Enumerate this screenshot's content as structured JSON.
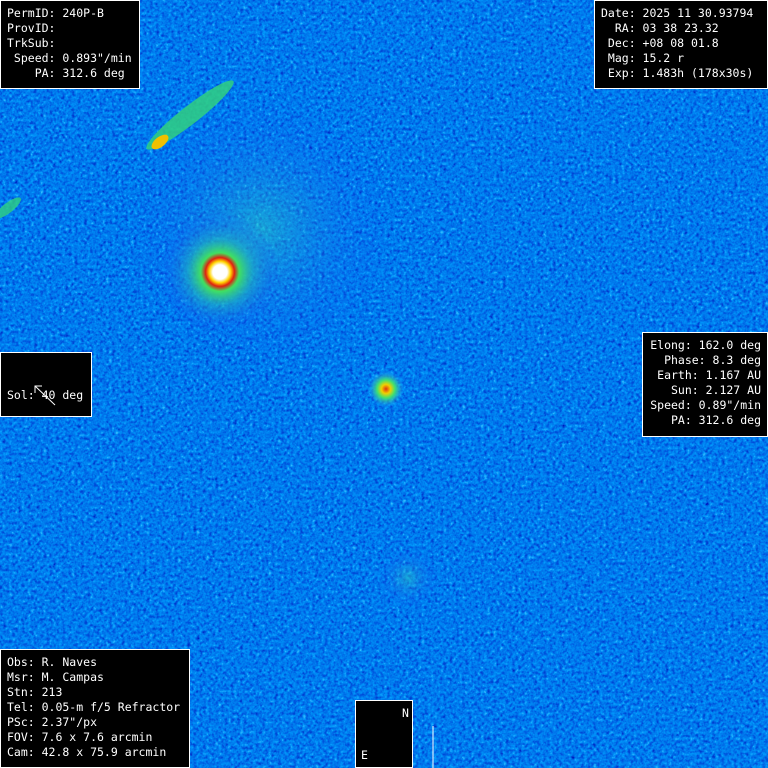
{
  "object": {
    "lines": [
      "PermID: 240P-B",
      "ProvID:",
      "TrkSub:",
      " Speed: 0.893\"/min",
      "    PA: 312.6 deg"
    ]
  },
  "ephemeris": {
    "lines": [
      "Date: 2025 11 30.93794",
      "  RA: 03 38 23.32",
      " Dec: +08 08 01.8",
      " Mag: 15.2 r",
      " Exp: 1.483h (178x30s)"
    ]
  },
  "sol": {
    "label": "Sol: 40 deg"
  },
  "geometry": {
    "lines": [
      "Elong: 162.0 deg",
      "Phase: 8.3 deg",
      "Earth: 1.167 AU",
      "Sun: 2.127 AU",
      "Speed: 0.89\"/min",
      "PA: 312.6 deg"
    ]
  },
  "observer": {
    "lines": [
      "Obs: R. Naves",
      "Msr: M. Campas",
      "Stn: 213",
      "Tel: 0.05-m f/5 Refractor",
      "PSc: 2.37\"/px",
      "FOV: 7.6 x 7.6 arcmin",
      "Cam: 42.8 x 75.9 arcmin"
    ]
  },
  "compass": {
    "north": "N",
    "east": "E"
  }
}
